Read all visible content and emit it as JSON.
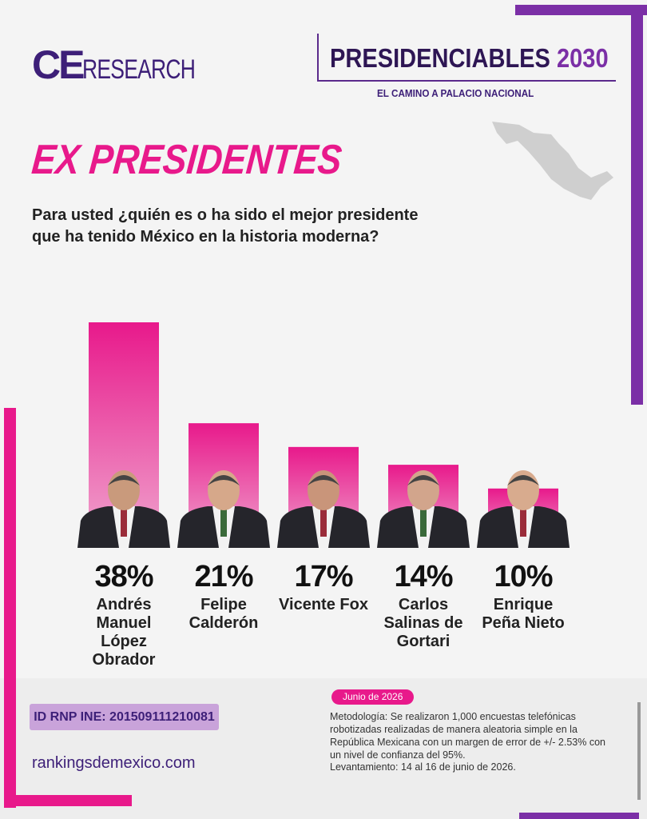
{
  "header": {
    "logo_ce": "CE",
    "logo_research": "RESEARCH",
    "title_main": "PRESIDENCIABLES",
    "title_year": "2030",
    "subtitle": "EL CAMINO A PALACIO NACIONAL"
  },
  "chart_data": {
    "type": "bar",
    "title": "EX PRESIDENTES",
    "subtitle": "Para usted ¿quién es o ha sido el mejor presidente que ha tenido México en la historia moderna?",
    "categories": [
      "Andrés Manuel López Obrador",
      "Felipe Calderón",
      "Vicente Fox",
      "Carlos Salinas de Gortari",
      "Enrique Peña Nieto"
    ],
    "values": [
      38,
      21,
      17,
      14,
      10
    ],
    "value_labels": [
      "38%",
      "21%",
      "17%",
      "14%",
      "10%"
    ],
    "color": "#e8198b"
  },
  "footer": {
    "registry": "ID RNP INE: 201509111210081",
    "website": "rankingsdemexico.com",
    "date": "Junio de 2026",
    "methodology": "Metodología: Se realizaron 1,000 encuestas telefónicas robotizadas realizadas de manera aleatoria simple en la República Mexicana con un margen de error de +/- 2.53% con un nivel de confianza del 95%.",
    "fieldwork": "Levantamiento: 14 al 16 de junio de 2026."
  }
}
